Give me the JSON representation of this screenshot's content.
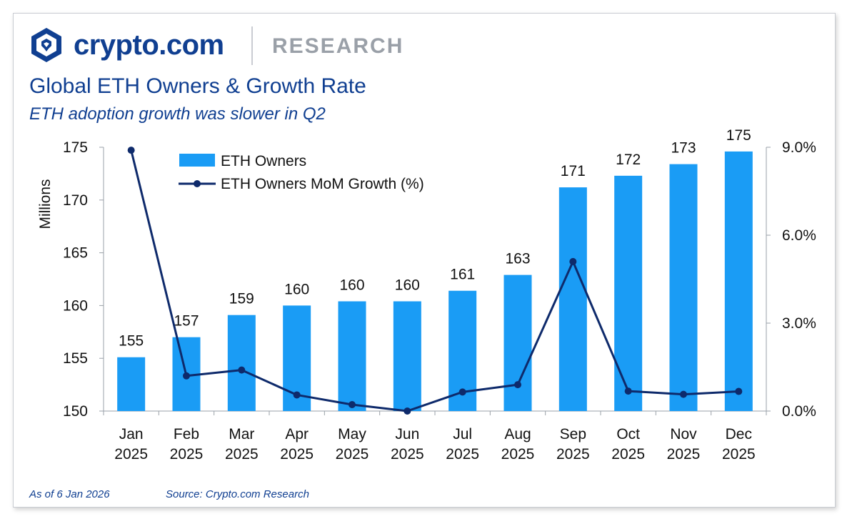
{
  "header": {
    "brand": "crypto.com",
    "section": "RESEARCH"
  },
  "colors": {
    "bar": "#1a9cf5",
    "line": "#0e2a6b",
    "title": "#103f91",
    "text": "#111111",
    "axis": "#9aa0a8"
  },
  "footer": {
    "as_of": "As of 6 Jan 2026",
    "source": "Source: Crypto.com Research"
  },
  "chart_data": {
    "type": "bar",
    "title": "Global ETH Owners & Growth Rate",
    "subtitle": "ETH adoption growth was slower in Q2",
    "categories": [
      [
        "Jan",
        "2025"
      ],
      [
        "Feb",
        "2025"
      ],
      [
        "Mar",
        "2025"
      ],
      [
        "Apr",
        "2025"
      ],
      [
        "May",
        "2025"
      ],
      [
        "Jun",
        "2025"
      ],
      [
        "Jul",
        "2025"
      ],
      [
        "Aug",
        "2025"
      ],
      [
        "Sep",
        "2025"
      ],
      [
        "Oct",
        "2025"
      ],
      [
        "Nov",
        "2025"
      ],
      [
        "Dec",
        "2025"
      ]
    ],
    "ylabel": "Millions",
    "ylim": [
      150,
      175
    ],
    "yticks": [
      "150",
      "155",
      "160",
      "165",
      "170",
      "175"
    ],
    "y2lim": [
      0,
      9
    ],
    "y2ticks": [
      "0.0%",
      "3.0%",
      "6.0%",
      "9.0%"
    ],
    "legend_position": "top-left",
    "grid": false,
    "series": [
      {
        "name": "ETH Owners",
        "type": "bar",
        "axis": "left",
        "values": [
          155.1,
          157.0,
          159.1,
          160.0,
          160.4,
          160.4,
          161.4,
          162.9,
          171.2,
          172.3,
          173.4,
          174.6
        ],
        "labels": [
          "155",
          "157",
          "159",
          "160",
          "160",
          "160",
          "161",
          "163",
          "171",
          "172",
          "173",
          "175"
        ]
      },
      {
        "name": "ETH Owners MoM Growth (%)",
        "type": "line",
        "axis": "right",
        "values": [
          8.9,
          1.2,
          1.4,
          0.55,
          0.22,
          0.0,
          0.65,
          0.9,
          5.1,
          0.68,
          0.57,
          0.67
        ]
      }
    ]
  }
}
